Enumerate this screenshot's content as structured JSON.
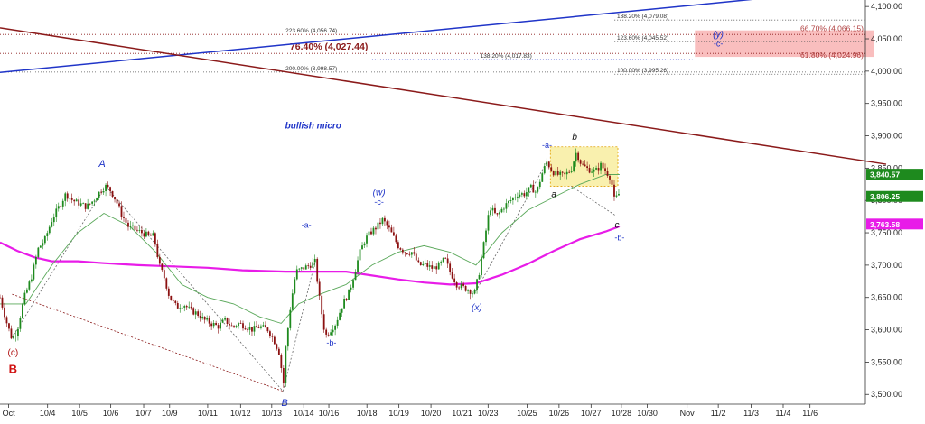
{
  "chart_data": {
    "type": "candlestick",
    "title": "",
    "xlabel": "",
    "ylabel": "",
    "ylim": [
      3485,
      4110
    ],
    "xlim": [
      0,
      1000
    ],
    "grid": false,
    "y_ticks": [
      "3,500.00",
      "3,550.00",
      "3,600.00",
      "3,650.00",
      "3,700.00",
      "3,750.00",
      "3,800.00",
      "3,850.00",
      "3,900.00",
      "3,950.00",
      "4,000.00",
      "4,050.00",
      "4,100.00"
    ],
    "y_tick_values": [
      3500,
      3550,
      3600,
      3650,
      3700,
      3750,
      3800,
      3850,
      3900,
      3950,
      4000,
      4050,
      4100
    ],
    "x_ticks": [
      {
        "label": "Oct",
        "x": 10
      },
      {
        "label": "10/4",
        "x": 55
      },
      {
        "label": "10/5",
        "x": 92
      },
      {
        "label": "10/6",
        "x": 128
      },
      {
        "label": "10/7",
        "x": 166
      },
      {
        "label": "10/9",
        "x": 196
      },
      {
        "label": "10/11",
        "x": 240
      },
      {
        "label": "10/12",
        "x": 278
      },
      {
        "label": "10/13",
        "x": 314
      },
      {
        "label": "10/14",
        "x": 351
      },
      {
        "label": "10/16",
        "x": 380
      },
      {
        "label": "10/18",
        "x": 424
      },
      {
        "label": "10/19",
        "x": 461
      },
      {
        "label": "10/20",
        "x": 498
      },
      {
        "label": "10/21",
        "x": 534
      },
      {
        "label": "10/23",
        "x": 564
      },
      {
        "label": "10/25",
        "x": 609
      },
      {
        "label": "10/26",
        "x": 646
      },
      {
        "label": "10/27",
        "x": 683
      },
      {
        "label": "10/28",
        "x": 718
      },
      {
        "label": "10/30",
        "x": 748
      },
      {
        "label": "Nov",
        "x": 794
      },
      {
        "label": "11/2",
        "x": 830
      },
      {
        "label": "11/3",
        "x": 868
      },
      {
        "label": "11/4",
        "x": 905
      },
      {
        "label": "11/6",
        "x": 936
      }
    ],
    "price_path": [
      [
        0,
        3650
      ],
      [
        8,
        3610
      ],
      [
        14,
        3585
      ],
      [
        20,
        3600
      ],
      [
        28,
        3650
      ],
      [
        36,
        3680
      ],
      [
        44,
        3725
      ],
      [
        52,
        3740
      ],
      [
        60,
        3770
      ],
      [
        68,
        3790
      ],
      [
        76,
        3810
      ],
      [
        84,
        3800
      ],
      [
        92,
        3795
      ],
      [
        100,
        3790
      ],
      [
        108,
        3800
      ],
      [
        116,
        3815
      ],
      [
        122,
        3822
      ],
      [
        128,
        3815
      ],
      [
        134,
        3800
      ],
      [
        140,
        3780
      ],
      [
        148,
        3760
      ],
      [
        156,
        3755
      ],
      [
        164,
        3750
      ],
      [
        172,
        3745
      ],
      [
        178,
        3745
      ],
      [
        184,
        3700
      ],
      [
        190,
        3680
      ],
      [
        196,
        3650
      ],
      [
        204,
        3635
      ],
      [
        212,
        3640
      ],
      [
        220,
        3630
      ],
      [
        228,
        3625
      ],
      [
        236,
        3615
      ],
      [
        244,
        3610
      ],
      [
        252,
        3605
      ],
      [
        260,
        3615
      ],
      [
        268,
        3605
      ],
      [
        276,
        3610
      ],
      [
        284,
        3605
      ],
      [
        292,
        3600
      ],
      [
        300,
        3605
      ],
      [
        310,
        3600
      ],
      [
        318,
        3580
      ],
      [
        324,
        3560
      ],
      [
        327,
        3505
      ],
      [
        330,
        3570
      ],
      [
        336,
        3640
      ],
      [
        342,
        3690
      ],
      [
        350,
        3695
      ],
      [
        358,
        3700
      ],
      [
        364,
        3705
      ],
      [
        370,
        3640
      ],
      [
        376,
        3590
      ],
      [
        382,
        3600
      ],
      [
        388,
        3610
      ],
      [
        396,
        3640
      ],
      [
        404,
        3660
      ],
      [
        410,
        3690
      ],
      [
        416,
        3720
      ],
      [
        422,
        3740
      ],
      [
        428,
        3750
      ],
      [
        436,
        3760
      ],
      [
        442,
        3770
      ],
      [
        448,
        3760
      ],
      [
        454,
        3745
      ],
      [
        460,
        3730
      ],
      [
        468,
        3720
      ],
      [
        476,
        3720
      ],
      [
        484,
        3700
      ],
      [
        492,
        3700
      ],
      [
        500,
        3695
      ],
      [
        508,
        3700
      ],
      [
        514,
        3710
      ],
      [
        520,
        3690
      ],
      [
        528,
        3670
      ],
      [
        536,
        3665
      ],
      [
        544,
        3660
      ],
      [
        548,
        3655
      ],
      [
        554,
        3690
      ],
      [
        560,
        3740
      ],
      [
        566,
        3790
      ],
      [
        574,
        3775
      ],
      [
        582,
        3790
      ],
      [
        590,
        3800
      ],
      [
        598,
        3810
      ],
      [
        606,
        3810
      ],
      [
        614,
        3820
      ],
      [
        620,
        3812
      ],
      [
        626,
        3840
      ],
      [
        632,
        3860
      ],
      [
        638,
        3845
      ],
      [
        644,
        3840
      ],
      [
        652,
        3838
      ],
      [
        660,
        3848
      ],
      [
        666,
        3875
      ],
      [
        672,
        3855
      ],
      [
        680,
        3848
      ],
      [
        688,
        3845
      ],
      [
        694,
        3855
      ],
      [
        700,
        3845
      ],
      [
        706,
        3835
      ],
      [
        710,
        3800
      ],
      [
        716,
        3812
      ]
    ],
    "green_ma": [
      [
        0,
        3640
      ],
      [
        30,
        3640
      ],
      [
        60,
        3700
      ],
      [
        90,
        3750
      ],
      [
        120,
        3780
      ],
      [
        150,
        3760
      ],
      [
        180,
        3720
      ],
      [
        210,
        3670
      ],
      [
        240,
        3650
      ],
      [
        270,
        3640
      ],
      [
        300,
        3620
      ],
      [
        325,
        3610
      ],
      [
        345,
        3640
      ],
      [
        370,
        3655
      ],
      [
        400,
        3670
      ],
      [
        430,
        3700
      ],
      [
        460,
        3720
      ],
      [
        490,
        3730
      ],
      [
        520,
        3720
      ],
      [
        550,
        3700
      ],
      [
        580,
        3750
      ],
      [
        610,
        3785
      ],
      [
        640,
        3805
      ],
      [
        670,
        3825
      ],
      [
        700,
        3840
      ],
      [
        716,
        3840
      ]
    ],
    "magenta_ma": [
      [
        0,
        3735
      ],
      [
        20,
        3722
      ],
      [
        40,
        3712
      ],
      [
        60,
        3706
      ],
      [
        90,
        3706
      ],
      [
        120,
        3703
      ],
      [
        160,
        3700
      ],
      [
        200,
        3698
      ],
      [
        240,
        3696
      ],
      [
        280,
        3692
      ],
      [
        330,
        3690
      ],
      [
        370,
        3690
      ],
      [
        400,
        3690
      ],
      [
        430,
        3684
      ],
      [
        460,
        3678
      ],
      [
        490,
        3673
      ],
      [
        520,
        3670
      ],
      [
        550,
        3672
      ],
      [
        580,
        3685
      ],
      [
        610,
        3702
      ],
      [
        640,
        3722
      ],
      [
        670,
        3740
      ],
      [
        700,
        3752
      ],
      [
        716,
        3760
      ]
    ],
    "trend_lines": [
      {
        "name": "blue-trendline",
        "color": "#1f34c8",
        "from": [
          0,
          3998
        ],
        "to": [
          885,
          4113
        ]
      },
      {
        "name": "brown-trendline",
        "color": "#8b1a1a",
        "from": [
          0,
          4067
        ],
        "to": [
          1024,
          3856
        ]
      }
    ],
    "dotted_lines": [
      {
        "name": "red-dotted-a",
        "color": "#8b1a1a",
        "from": [
          14,
          3655
        ],
        "to": [
          327,
          3505
        ]
      },
      {
        "name": "gray-dotted-1",
        "color": "#666666",
        "from": [
          14,
          3588
        ],
        "to": [
          122,
          3822
        ]
      },
      {
        "name": "gray-dotted-2",
        "color": "#666666",
        "from": [
          122,
          3822
        ],
        "to": [
          327,
          3505
        ]
      },
      {
        "name": "gray-dotted-3",
        "color": "#666666",
        "from": [
          327,
          3505
        ],
        "to": [
          364,
          3705
        ]
      },
      {
        "name": "gray-dotted-4",
        "color": "#666666",
        "from": [
          548,
          3655
        ],
        "to": [
          632,
          3860
        ]
      },
      {
        "name": "gray-dotted-5",
        "color": "#666666",
        "from": [
          660,
          3822
        ],
        "to": [
          712,
          3776
        ]
      }
    ],
    "fib_levels": [
      {
        "label": "223.60% (4,056.74)",
        "y": 4056.74,
        "x1": 0,
        "x2": 1010,
        "label_x": 330,
        "color": "#8b1a1a",
        "dash": "1,2"
      },
      {
        "label": "200.00% (3,998.57)",
        "y": 3998.57,
        "x1": 0,
        "x2": 1010,
        "label_x": 330,
        "color": "#555555",
        "dash": "1,2"
      },
      {
        "label": "138.20% (4,017.83)",
        "y": 4017.83,
        "x1": 430,
        "x2": 800,
        "label_x": 555,
        "color": "#1f34c8",
        "dash": "1,2"
      },
      {
        "label": "138.20% (4,079.08)",
        "y": 4079.08,
        "x1": 710,
        "x2": 1010,
        "label_x": 713,
        "color": "#555555",
        "dash": "1,2"
      },
      {
        "label": "123.60% (4,045.52)",
        "y": 4045.52,
        "x1": 710,
        "x2": 1010,
        "label_x": 713,
        "color": "#555555",
        "dash": "1,2"
      },
      {
        "label": "100.00% (3,995.26)",
        "y": 3995.26,
        "x1": 710,
        "x2": 1010,
        "label_x": 713,
        "color": "#555555",
        "dash": "1,2"
      }
    ],
    "fib_right_labels": [
      {
        "label": "66.70% (4,066.15)",
        "y": 4066.15,
        "color": "#b04040"
      },
      {
        "label": "61.80% (4,024.96)",
        "y": 4024.96,
        "color": "#b04040"
      }
    ],
    "highlight_level": {
      "label": "76.40% (4,027.44)",
      "y": 4027.44,
      "label_x": 335,
      "color": "#8b1a1a"
    },
    "target_box": {
      "x1": 803,
      "x2": 1010,
      "y1": 4063,
      "y2": 4022,
      "fill": "#f7a8a8"
    },
    "consolidation_box": {
      "x1": 636,
      "x2": 714,
      "y1": 3883,
      "y2": 3822,
      "fill": "#f7ec9a"
    },
    "wave_labels": [
      {
        "text": "(c)",
        "x": 15,
        "y": 3560,
        "color": "#b01010",
        "size": 10,
        "bold": false,
        "italic": false
      },
      {
        "text": "B",
        "x": 15,
        "y": 3533,
        "color": "#d01010",
        "size": 13,
        "bold": true,
        "italic": false
      },
      {
        "text": "A",
        "x": 118,
        "y": 3852,
        "color": "#1f34c8",
        "size": 11,
        "bold": false,
        "italic": true
      },
      {
        "text": "B",
        "x": 329,
        "y": 3482,
        "color": "#1f34c8",
        "size": 11,
        "bold": false,
        "italic": true
      },
      {
        "text": "-a-",
        "x": 354,
        "y": 3758,
        "color": "#1f34c8",
        "size": 9,
        "bold": false,
        "italic": false
      },
      {
        "text": "-b-",
        "x": 383,
        "y": 3576,
        "color": "#1f34c8",
        "size": 9,
        "bold": false,
        "italic": false
      },
      {
        "text": "(w)",
        "x": 438,
        "y": 3808,
        "color": "#1f34c8",
        "size": 10,
        "bold": false,
        "italic": true
      },
      {
        "text": "-c-",
        "x": 438,
        "y": 3793,
        "color": "#1f34c8",
        "size": 9,
        "bold": false,
        "italic": false
      },
      {
        "text": "(x)",
        "x": 551,
        "y": 3630,
        "color": "#1f34c8",
        "size": 10,
        "bold": false,
        "italic": true
      },
      {
        "text": "-a-",
        "x": 632,
        "y": 3881,
        "color": "#1f34c8",
        "size": 9,
        "bold": false,
        "italic": false
      },
      {
        "text": "a",
        "x": 640,
        "y": 3805,
        "color": "#111111",
        "size": 10,
        "bold": false,
        "italic": true
      },
      {
        "text": "b",
        "x": 664,
        "y": 3894,
        "color": "#111111",
        "size": 10,
        "bold": false,
        "italic": true
      },
      {
        "text": "c",
        "x": 713,
        "y": 3758,
        "color": "#111111",
        "size": 10,
        "bold": false,
        "italic": true
      },
      {
        "text": "-b-",
        "x": 716,
        "y": 3738,
        "color": "#1f34c8",
        "size": 9,
        "bold": false,
        "italic": false
      },
      {
        "text": "(y)",
        "x": 830,
        "y": 4052,
        "color": "#1f34c8",
        "size": 10,
        "bold": false,
        "italic": true
      },
      {
        "text": "-c-",
        "x": 830,
        "y": 4038,
        "color": "#1f34c8",
        "size": 9,
        "bold": false,
        "italic": false
      }
    ],
    "annotation_text": {
      "text": "bullish micro",
      "x": 362,
      "y": 3911,
      "color": "#1f34c8"
    },
    "price_markers": [
      {
        "label": "3,840.57",
        "y": 3840.57,
        "color": "#1e8a1e"
      },
      {
        "label": "3,806.25",
        "y": 3806.25,
        "color": "#1e8a1e"
      },
      {
        "label": "3,763.58",
        "y": 3763.58,
        "color": "#e81ce8"
      }
    ],
    "colors": {
      "bull": "#1e8a1e",
      "bear": "#8b1010",
      "green_ma": "#5aa85a",
      "magenta_ma": "#e81ce8"
    }
  }
}
